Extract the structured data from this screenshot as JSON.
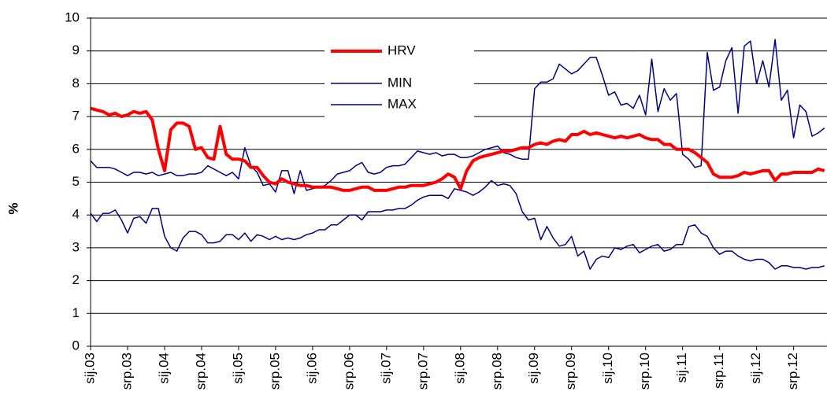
{
  "chart_data": {
    "type": "line",
    "y_label": "%",
    "categories": [
      "sij.03",
      null,
      null,
      null,
      null,
      null,
      "srp.03",
      null,
      null,
      null,
      null,
      null,
      "sij.04",
      null,
      null,
      null,
      null,
      null,
      "srp.04",
      null,
      null,
      null,
      null,
      null,
      "sij.05",
      null,
      null,
      null,
      null,
      null,
      "srp.05",
      null,
      null,
      null,
      null,
      null,
      "sij.06",
      null,
      null,
      null,
      null,
      null,
      "srp.06",
      null,
      null,
      null,
      null,
      null,
      "sij.07",
      null,
      null,
      null,
      null,
      null,
      "srp.07",
      null,
      null,
      null,
      null,
      null,
      "sij.08",
      null,
      null,
      null,
      null,
      null,
      "srp.08",
      null,
      null,
      null,
      null,
      null,
      "sij.09",
      null,
      null,
      null,
      null,
      null,
      "srp.09",
      null,
      null,
      null,
      null,
      null,
      "sij.10",
      null,
      null,
      null,
      null,
      null,
      "srp.10",
      null,
      null,
      null,
      null,
      null,
      "sij.11",
      null,
      null,
      null,
      null,
      null,
      "srp.11",
      null,
      null,
      null,
      null,
      null,
      "sij.12",
      null,
      null,
      null,
      null,
      null,
      "srp.12",
      null,
      null,
      null,
      null,
      null
    ],
    "series": [
      {
        "name": "HRV",
        "color": "#ff0000",
        "width": 4,
        "values": [
          7.25,
          7.2,
          7.15,
          7.05,
          7.1,
          7.0,
          7.05,
          7.15,
          7.1,
          7.15,
          6.9,
          6.0,
          5.35,
          6.6,
          6.8,
          6.8,
          6.7,
          6.0,
          6.05,
          5.75,
          5.7,
          6.7,
          5.85,
          5.7,
          5.7,
          5.65,
          5.45,
          5.45,
          5.2,
          5.0,
          4.95,
          5.1,
          5.0,
          4.95,
          4.9,
          4.9,
          4.85,
          4.85,
          4.85,
          4.85,
          4.8,
          4.75,
          4.75,
          4.8,
          4.85,
          4.85,
          4.75,
          4.75,
          4.75,
          4.8,
          4.85,
          4.85,
          4.9,
          4.9,
          4.9,
          4.95,
          5.0,
          5.1,
          5.25,
          5.15,
          4.8,
          5.35,
          5.65,
          5.75,
          5.8,
          5.85,
          5.9,
          5.95,
          5.95,
          6.0,
          6.05,
          6.05,
          6.15,
          6.2,
          6.15,
          6.25,
          6.3,
          6.25,
          6.45,
          6.45,
          6.55,
          6.45,
          6.5,
          6.45,
          6.4,
          6.35,
          6.4,
          6.35,
          6.4,
          6.45,
          6.35,
          6.3,
          6.3,
          6.15,
          6.15,
          6.0,
          6.0,
          6.0,
          5.9,
          5.75,
          5.6,
          5.25,
          5.15,
          5.15,
          5.15,
          5.2,
          5.3,
          5.25,
          5.3,
          5.35,
          5.35,
          5.05,
          5.25,
          5.25,
          5.3,
          5.3,
          5.3,
          5.3,
          5.4,
          5.35
        ]
      },
      {
        "name": "MIN",
        "color": "#000080",
        "width": 1.5,
        "values": [
          4.05,
          3.8,
          4.05,
          4.05,
          4.15,
          3.85,
          3.45,
          3.9,
          3.95,
          3.75,
          4.2,
          4.2,
          3.35,
          3.0,
          2.9,
          3.3,
          3.5,
          3.5,
          3.4,
          3.15,
          3.15,
          3.2,
          3.4,
          3.4,
          3.25,
          3.45,
          3.2,
          3.4,
          3.35,
          3.25,
          3.35,
          3.25,
          3.3,
          3.25,
          3.3,
          3.4,
          3.45,
          3.55,
          3.55,
          3.7,
          3.7,
          3.85,
          4.0,
          4.0,
          3.85,
          4.1,
          4.1,
          4.1,
          4.15,
          4.15,
          4.2,
          4.2,
          4.3,
          4.45,
          4.55,
          4.6,
          4.6,
          4.6,
          4.5,
          4.8,
          4.75,
          4.7,
          4.6,
          4.7,
          4.85,
          5.05,
          4.9,
          4.95,
          4.9,
          4.65,
          4.1,
          3.85,
          3.9,
          3.25,
          3.65,
          3.3,
          3.05,
          3.1,
          3.35,
          2.75,
          2.9,
          2.35,
          2.65,
          2.75,
          2.7,
          3.0,
          2.95,
          3.05,
          3.1,
          2.85,
          2.95,
          3.05,
          3.1,
          2.9,
          2.95,
          3.1,
          3.1,
          3.65,
          3.7,
          3.45,
          3.35,
          3.0,
          2.8,
          2.9,
          2.9,
          2.75,
          2.65,
          2.6,
          2.65,
          2.65,
          2.55,
          2.35,
          2.45,
          2.45,
          2.4,
          2.4,
          2.35,
          2.4,
          2.4,
          2.45
        ]
      },
      {
        "name": "MAX",
        "color": "#000080",
        "width": 1.5,
        "values": [
          5.65,
          5.45,
          5.45,
          5.45,
          5.4,
          5.3,
          5.2,
          5.3,
          5.3,
          5.25,
          5.3,
          5.2,
          5.25,
          5.3,
          5.2,
          5.2,
          5.25,
          5.25,
          5.3,
          5.5,
          5.4,
          5.3,
          5.2,
          5.3,
          5.1,
          6.05,
          5.5,
          5.3,
          4.9,
          4.95,
          4.7,
          5.35,
          5.35,
          4.65,
          5.35,
          4.75,
          4.8,
          4.85,
          4.9,
          5.05,
          5.25,
          5.3,
          5.35,
          5.5,
          5.6,
          5.3,
          5.25,
          5.3,
          5.45,
          5.5,
          5.5,
          5.55,
          5.75,
          5.95,
          5.9,
          5.85,
          5.9,
          5.8,
          5.85,
          5.85,
          5.75,
          5.75,
          5.8,
          5.9,
          6.0,
          6.05,
          6.1,
          5.9,
          5.85,
          5.75,
          5.7,
          5.7,
          7.85,
          8.05,
          8.05,
          8.15,
          8.6,
          8.45,
          8.3,
          8.4,
          8.6,
          8.8,
          8.8,
          8.25,
          7.65,
          7.75,
          7.35,
          7.4,
          7.25,
          7.65,
          7.05,
          8.75,
          7.15,
          7.85,
          7.5,
          7.7,
          5.85,
          5.7,
          5.45,
          5.5,
          8.95,
          7.8,
          7.9,
          8.7,
          9.1,
          7.1,
          9.15,
          9.3,
          8.0,
          8.7,
          7.9,
          9.35,
          7.5,
          7.8,
          6.35,
          7.35,
          7.15,
          6.4,
          6.5,
          6.65
        ]
      }
    ],
    "ylim": [
      0,
      10
    ],
    "yticks": [
      0,
      1,
      2,
      3,
      4,
      5,
      6,
      7,
      8,
      9,
      10
    ],
    "grid": true
  }
}
